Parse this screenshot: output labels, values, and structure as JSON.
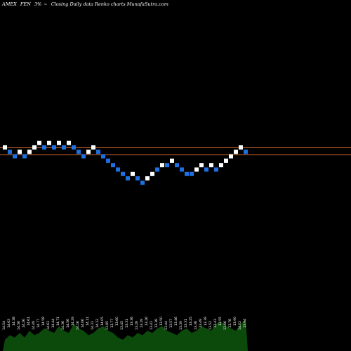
{
  "header": {
    "exchange": "AMEX",
    "symbol": "FEN",
    "change": "3%",
    "tilde": "~",
    "caption": "Closing Daily data Renko charts MunafaSutra.com"
  },
  "colors": {
    "background": "#000000",
    "up_brick": "#ffffff",
    "down_brick": "#1e6fe0",
    "reference_line": "#c8642a",
    "volume": "#0c4a0c",
    "label_text": "#ffffff"
  },
  "chart_data": {
    "type": "renko",
    "title": "AMEX FEN 3%~ Closing Daily data Renko charts MunafaSutra.com",
    "bricks": [
      {
        "dir": "up",
        "level": 0
      },
      {
        "dir": "down",
        "level": -1
      },
      {
        "dir": "down",
        "level": -2
      },
      {
        "dir": "up",
        "level": -1
      },
      {
        "dir": "down",
        "level": -2
      },
      {
        "dir": "up",
        "level": -1
      },
      {
        "dir": "up",
        "level": 0
      },
      {
        "dir": "up",
        "level": 1
      },
      {
        "dir": "down",
        "level": 0
      },
      {
        "dir": "up",
        "level": 1
      },
      {
        "dir": "down",
        "level": 0
      },
      {
        "dir": "up",
        "level": 1
      },
      {
        "dir": "down",
        "level": 0
      },
      {
        "dir": "up",
        "level": 1
      },
      {
        "dir": "down",
        "level": 0
      },
      {
        "dir": "down",
        "level": -1
      },
      {
        "dir": "down",
        "level": -2
      },
      {
        "dir": "up",
        "level": -1
      },
      {
        "dir": "up",
        "level": 0
      },
      {
        "dir": "down",
        "level": -1
      },
      {
        "dir": "down",
        "level": -2
      },
      {
        "dir": "down",
        "level": -3
      },
      {
        "dir": "down",
        "level": -4
      },
      {
        "dir": "down",
        "level": -5
      },
      {
        "dir": "down",
        "level": -6
      },
      {
        "dir": "down",
        "level": -7
      },
      {
        "dir": "up",
        "level": -6
      },
      {
        "dir": "down",
        "level": -7
      },
      {
        "dir": "down",
        "level": -8
      },
      {
        "dir": "up",
        "level": -7
      },
      {
        "dir": "up",
        "level": -6
      },
      {
        "dir": "down",
        "level": -5
      },
      {
        "dir": "up",
        "level": -4
      },
      {
        "dir": "down",
        "level": -4
      },
      {
        "dir": "up",
        "level": -3
      },
      {
        "dir": "down",
        "level": -4
      },
      {
        "dir": "down",
        "level": -5
      },
      {
        "dir": "down",
        "level": -6
      },
      {
        "dir": "down",
        "level": -6
      },
      {
        "dir": "up",
        "level": -5
      },
      {
        "dir": "up",
        "level": -4
      },
      {
        "dir": "down",
        "level": -5
      },
      {
        "dir": "up",
        "level": -4
      },
      {
        "dir": "down",
        "level": -5
      },
      {
        "dir": "up",
        "level": -4
      },
      {
        "dir": "up",
        "level": -3
      },
      {
        "dir": "up",
        "level": -2
      },
      {
        "dir": "up",
        "level": -1
      },
      {
        "dir": "up",
        "level": 0
      },
      {
        "dir": "down",
        "level": -1
      }
    ],
    "reference_lines": [
      {
        "level": 0
      },
      {
        "level": -1.6
      }
    ],
    "volume": [
      5,
      7,
      6,
      8,
      6,
      9,
      7,
      8,
      10,
      9,
      8,
      11,
      9,
      8,
      12,
      10,
      9,
      7,
      8,
      10,
      11,
      9,
      8,
      6,
      5,
      7,
      6,
      8,
      7,
      9,
      8,
      10,
      11,
      9,
      8,
      7,
      9,
      10,
      8,
      9,
      11,
      10,
      9,
      12,
      13,
      11,
      10,
      9,
      12,
      14
    ],
    "volume_labels": [
      "14.54",
      "14.63",
      "14.38",
      "14.56",
      "14.26",
      "14.61",
      "14.49",
      "14.77",
      "14.58",
      "14.63",
      "14.44",
      "14.71",
      "14.36",
      "14.56",
      "14.29",
      "14.16",
      "14.06",
      "14.11",
      "14.31",
      "14.12",
      "14.05",
      "13.85",
      "13.77",
      "13.60",
      "13.45",
      "13.31",
      "13.36",
      "13.28",
      "13.19",
      "13.26",
      "13.41",
      "13.38",
      "13.50",
      "13.44",
      "13.57",
      "13.46",
      "13.39",
      "13.31",
      "13.25",
      "13.38",
      "13.49",
      "13.39",
      "13.52",
      "13.43",
      "13.55",
      "13.66",
      "13.78",
      "13.90",
      "14.02",
      "13.94"
    ]
  }
}
